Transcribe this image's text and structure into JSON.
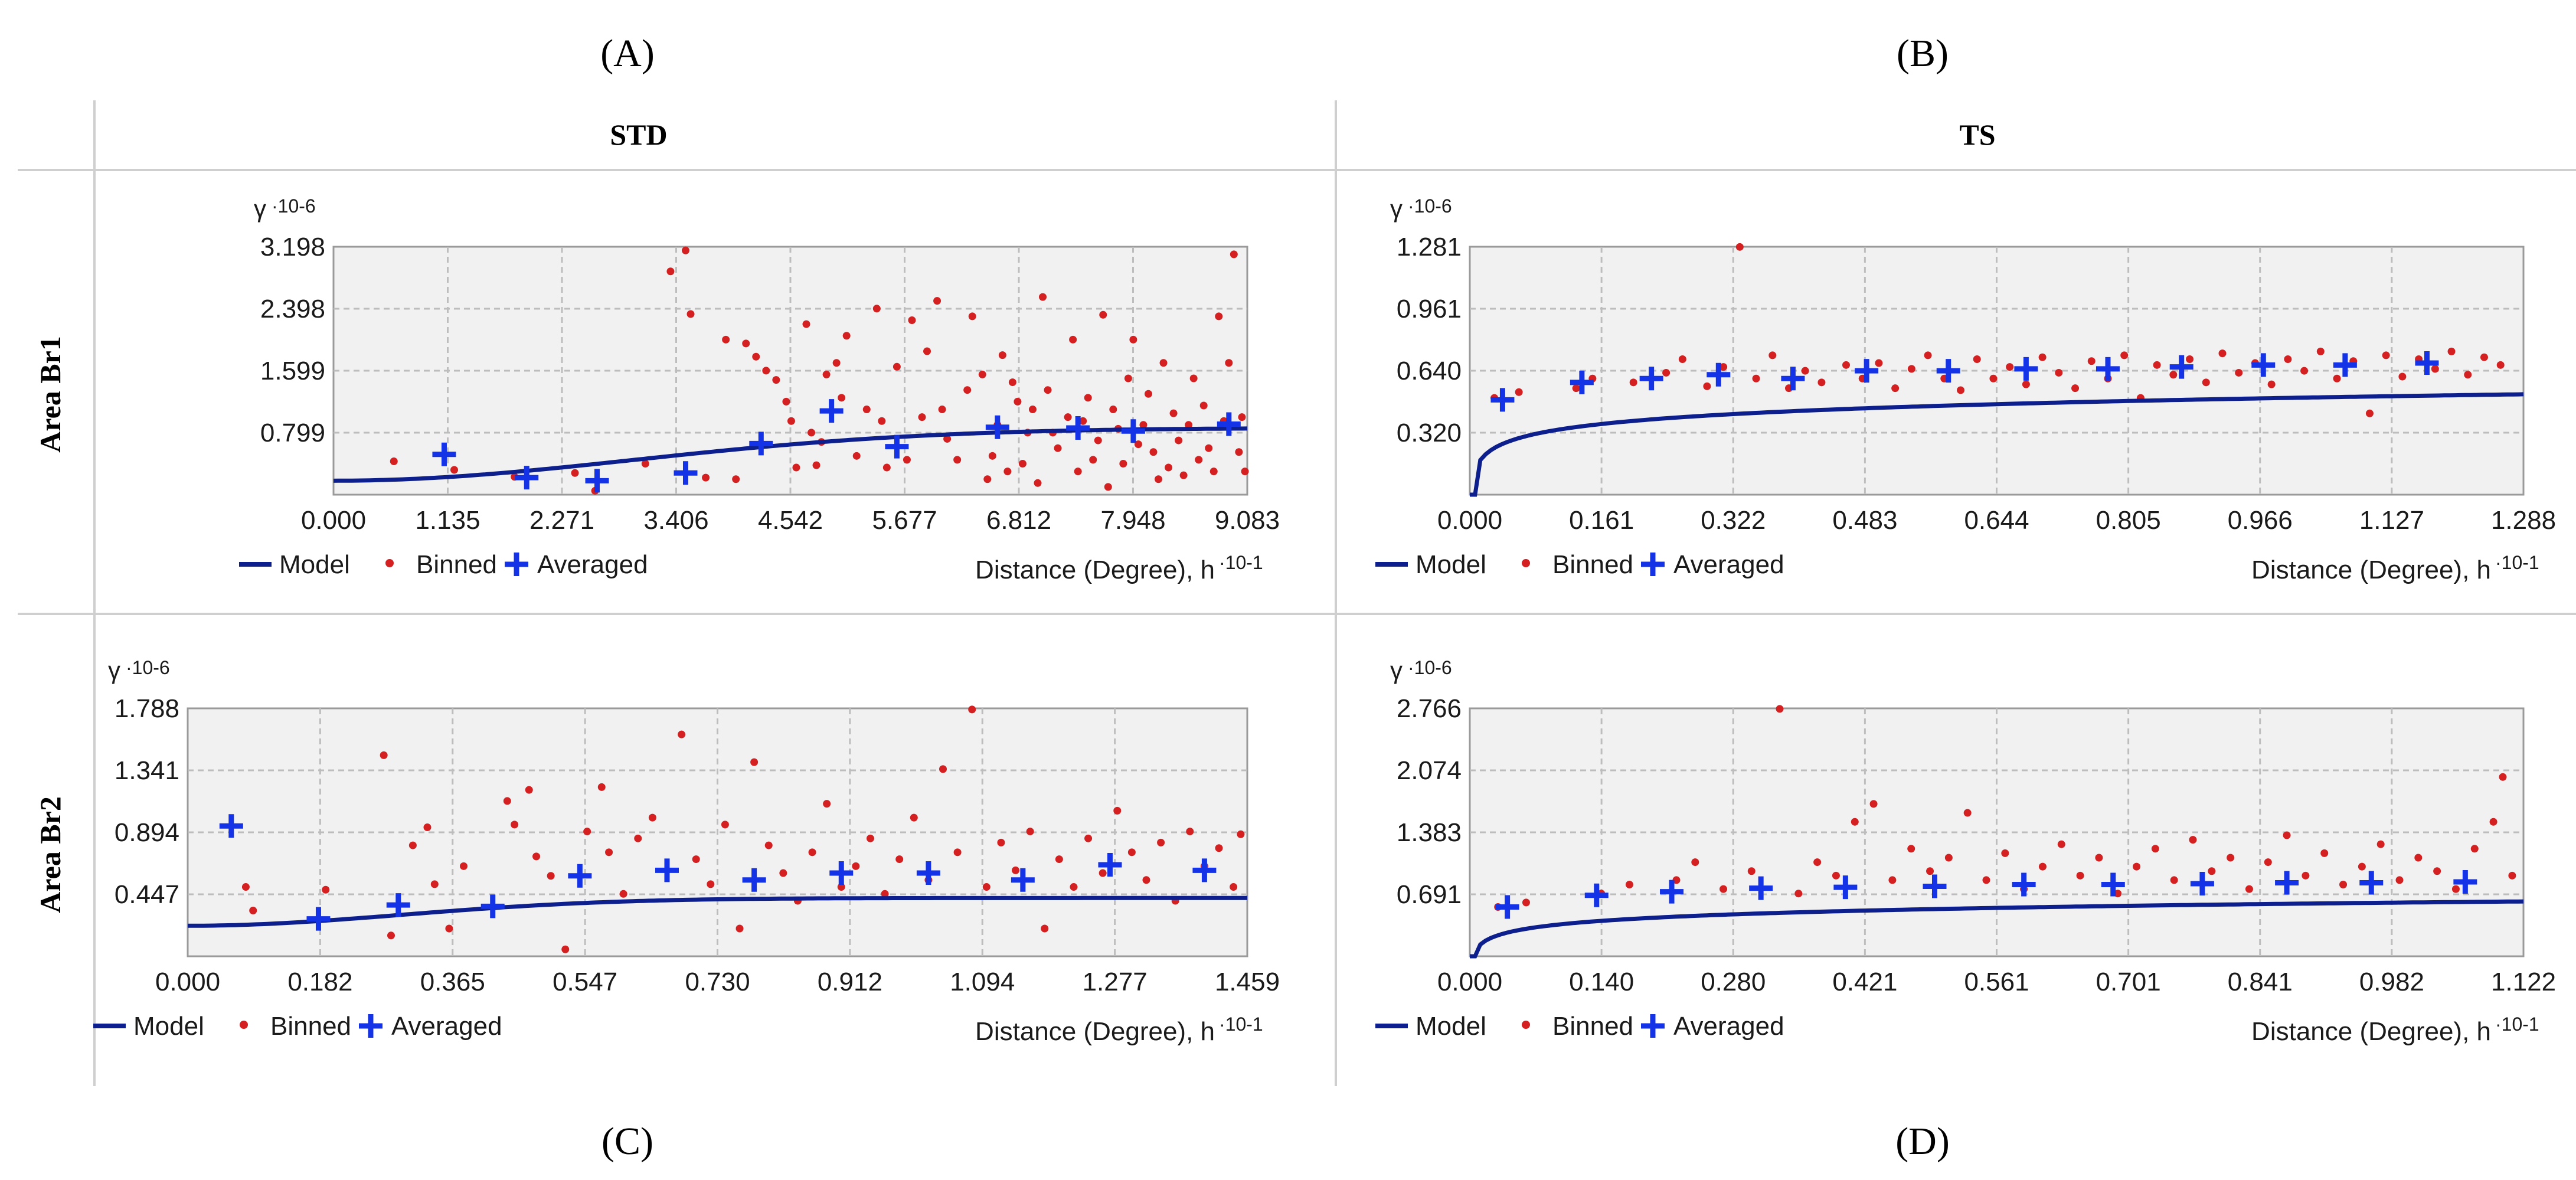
{
  "column_headers": [
    "STD",
    "TS"
  ],
  "row_headers": [
    "Area Br1",
    "Area Br2"
  ],
  "panel_letters": [
    "(A)",
    "(B)",
    "(C)",
    "(D)"
  ],
  "legend": {
    "model": "Model",
    "binned": "Binned",
    "averaged": "Averaged"
  },
  "colors": {
    "model": "#0d1f8c",
    "binned": "#d42020",
    "averaged": "#1433e6"
  },
  "chart_data": [
    {
      "id": "A",
      "type": "scatter",
      "title": "STD — Area Br1",
      "ylabel": "γ",
      "ylabel_exp": "·10-6",
      "xlabel": "Distance (Degree), h",
      "xlabel_exp": "·10-1",
      "xlim": [
        0,
        9.083
      ],
      "ylim": [
        0,
        3.198
      ],
      "xticks": [
        "0.000",
        "1.135",
        "2.271",
        "3.406",
        "4.542",
        "5.677",
        "6.812",
        "7.948",
        "9.083"
      ],
      "yticks": [
        "0.799",
        "1.599",
        "2.398",
        "3.198"
      ],
      "model": {
        "kind": "gaussian",
        "nugget": 0.18,
        "sill": 0.86,
        "range": 7.3
      },
      "averaged": [
        [
          1.1,
          0.52
        ],
        [
          1.92,
          0.22
        ],
        [
          2.62,
          0.18
        ],
        [
          3.5,
          0.28
        ],
        [
          4.25,
          0.66
        ],
        [
          4.95,
          1.08
        ],
        [
          5.6,
          0.62
        ],
        [
          6.6,
          0.87
        ],
        [
          7.4,
          0.86
        ],
        [
          7.95,
          0.82
        ],
        [
          8.9,
          0.91
        ]
      ],
      "binned": [
        [
          0.6,
          0.43
        ],
        [
          1.2,
          0.32
        ],
        [
          1.8,
          0.23
        ],
        [
          2.4,
          0.28
        ],
        [
          2.6,
          0.05
        ],
        [
          3.1,
          0.4
        ],
        [
          3.35,
          2.88
        ],
        [
          3.5,
          3.15
        ],
        [
          3.55,
          2.33
        ],
        [
          3.7,
          0.22
        ],
        [
          3.9,
          2.0
        ],
        [
          4.0,
          0.2
        ],
        [
          4.1,
          1.95
        ],
        [
          4.2,
          1.78
        ],
        [
          4.3,
          1.6
        ],
        [
          4.4,
          1.48
        ],
        [
          4.5,
          1.2
        ],
        [
          4.55,
          0.95
        ],
        [
          4.6,
          0.35
        ],
        [
          4.7,
          2.2
        ],
        [
          4.75,
          0.8
        ],
        [
          4.8,
          0.38
        ],
        [
          4.85,
          0.68
        ],
        [
          4.9,
          1.55
        ],
        [
          5.0,
          1.7
        ],
        [
          5.05,
          1.25
        ],
        [
          5.1,
          2.05
        ],
        [
          5.2,
          0.5
        ],
        [
          5.3,
          1.1
        ],
        [
          5.4,
          2.4
        ],
        [
          5.45,
          0.95
        ],
        [
          5.5,
          0.35
        ],
        [
          5.6,
          1.65
        ],
        [
          5.7,
          0.45
        ],
        [
          5.75,
          2.25
        ],
        [
          5.85,
          1.0
        ],
        [
          5.9,
          1.85
        ],
        [
          6.0,
          2.5
        ],
        [
          6.05,
          1.1
        ],
        [
          6.1,
          0.72
        ],
        [
          6.2,
          0.45
        ],
        [
          6.3,
          1.35
        ],
        [
          6.35,
          2.3
        ],
        [
          6.45,
          1.55
        ],
        [
          6.5,
          0.2
        ],
        [
          6.55,
          0.5
        ],
        [
          6.6,
          0.9
        ],
        [
          6.65,
          1.8
        ],
        [
          6.7,
          0.3
        ],
        [
          6.75,
          1.45
        ],
        [
          6.8,
          1.2
        ],
        [
          6.85,
          0.4
        ],
        [
          6.9,
          0.8
        ],
        [
          6.95,
          1.1
        ],
        [
          7.0,
          0.15
        ],
        [
          7.05,
          2.55
        ],
        [
          7.1,
          1.35
        ],
        [
          7.15,
          0.8
        ],
        [
          7.2,
          0.6
        ],
        [
          7.3,
          1.0
        ],
        [
          7.35,
          2.0
        ],
        [
          7.4,
          0.3
        ],
        [
          7.45,
          0.95
        ],
        [
          7.5,
          1.25
        ],
        [
          7.55,
          0.45
        ],
        [
          7.6,
          0.7
        ],
        [
          7.65,
          2.32
        ],
        [
          7.7,
          0.1
        ],
        [
          7.75,
          1.1
        ],
        [
          7.8,
          0.85
        ],
        [
          7.85,
          0.4
        ],
        [
          7.9,
          1.5
        ],
        [
          7.95,
          2.0
        ],
        [
          8.0,
          0.65
        ],
        [
          8.05,
          0.9
        ],
        [
          8.1,
          1.3
        ],
        [
          8.15,
          0.55
        ],
        [
          8.2,
          0.2
        ],
        [
          8.25,
          1.7
        ],
        [
          8.3,
          0.35
        ],
        [
          8.35,
          1.05
        ],
        [
          8.4,
          0.7
        ],
        [
          8.45,
          0.25
        ],
        [
          8.5,
          0.9
        ],
        [
          8.55,
          1.5
        ],
        [
          8.6,
          0.45
        ],
        [
          8.65,
          1.15
        ],
        [
          8.7,
          0.6
        ],
        [
          8.75,
          0.3
        ],
        [
          8.8,
          2.3
        ],
        [
          8.85,
          0.95
        ],
        [
          8.9,
          1.7
        ],
        [
          8.95,
          3.1
        ],
        [
          9.0,
          0.55
        ],
        [
          9.03,
          1.0
        ],
        [
          9.06,
          0.3
        ]
      ]
    },
    {
      "id": "B",
      "type": "scatter",
      "title": "TS — Area Br1",
      "ylabel": "γ",
      "ylabel_exp": "·10-6",
      "xlabel": "Distance (Degree), h",
      "xlabel_exp": "·10-1",
      "xlim": [
        0,
        1.288
      ],
      "ylim": [
        0,
        1.281
      ],
      "xticks": [
        "0.000",
        "0.161",
        "0.322",
        "0.483",
        "0.644",
        "0.805",
        "0.966",
        "1.127",
        "1.288"
      ],
      "yticks": [
        "0.320",
        "0.640",
        "0.961",
        "1.281"
      ],
      "model": {
        "kind": "power",
        "a": 0.5,
        "b": 0.17,
        "c": 0.14,
        "x0": 0.01
      },
      "averaged": [
        [
          0.04,
          0.49
        ],
        [
          0.137,
          0.58
        ],
        [
          0.222,
          0.6
        ],
        [
          0.304,
          0.62
        ],
        [
          0.395,
          0.6
        ],
        [
          0.485,
          0.64
        ],
        [
          0.585,
          0.64
        ],
        [
          0.68,
          0.65
        ],
        [
          0.78,
          0.65
        ],
        [
          0.87,
          0.66
        ],
        [
          0.97,
          0.67
        ],
        [
          1.07,
          0.67
        ],
        [
          1.17,
          0.68
        ]
      ],
      "binned": [
        [
          0.03,
          0.5
        ],
        [
          0.06,
          0.53
        ],
        [
          0.13,
          0.55
        ],
        [
          0.15,
          0.6
        ],
        [
          0.2,
          0.58
        ],
        [
          0.24,
          0.63
        ],
        [
          0.26,
          0.7
        ],
        [
          0.29,
          0.56
        ],
        [
          0.31,
          0.66
        ],
        [
          0.33,
          1.28
        ],
        [
          0.35,
          0.6
        ],
        [
          0.37,
          0.72
        ],
        [
          0.39,
          0.55
        ],
        [
          0.41,
          0.64
        ],
        [
          0.43,
          0.58
        ],
        [
          0.46,
          0.67
        ],
        [
          0.48,
          0.6
        ],
        [
          0.5,
          0.68
        ],
        [
          0.52,
          0.55
        ],
        [
          0.54,
          0.65
        ],
        [
          0.56,
          0.72
        ],
        [
          0.58,
          0.6
        ],
        [
          0.6,
          0.54
        ],
        [
          0.62,
          0.7
        ],
        [
          0.64,
          0.6
        ],
        [
          0.66,
          0.66
        ],
        [
          0.68,
          0.57
        ],
        [
          0.7,
          0.71
        ],
        [
          0.72,
          0.63
        ],
        [
          0.74,
          0.55
        ],
        [
          0.76,
          0.69
        ],
        [
          0.78,
          0.6
        ],
        [
          0.8,
          0.72
        ],
        [
          0.82,
          0.5
        ],
        [
          0.84,
          0.67
        ],
        [
          0.86,
          0.62
        ],
        [
          0.88,
          0.7
        ],
        [
          0.9,
          0.58
        ],
        [
          0.92,
          0.73
        ],
        [
          0.94,
          0.63
        ],
        [
          0.96,
          0.68
        ],
        [
          0.98,
          0.57
        ],
        [
          1.0,
          0.7
        ],
        [
          1.02,
          0.64
        ],
        [
          1.04,
          0.74
        ],
        [
          1.06,
          0.6
        ],
        [
          1.08,
          0.69
        ],
        [
          1.1,
          0.42
        ],
        [
          1.12,
          0.72
        ],
        [
          1.14,
          0.61
        ],
        [
          1.16,
          0.7
        ],
        [
          1.18,
          0.65
        ],
        [
          1.2,
          0.74
        ],
        [
          1.22,
          0.62
        ],
        [
          1.24,
          0.71
        ],
        [
          1.26,
          0.67
        ]
      ]
    },
    {
      "id": "C",
      "type": "scatter",
      "title": "STD — Area Br2",
      "ylabel": "γ",
      "ylabel_exp": "·10-6",
      "xlabel": "Distance (Degree), h",
      "xlabel_exp": "·10-1",
      "xlim": [
        0,
        1.459
      ],
      "ylim": [
        0,
        1.788
      ],
      "xticks": [
        "0.000",
        "0.182",
        "0.365",
        "0.547",
        "0.730",
        "0.912",
        "1.094",
        "1.277",
        "1.459"
      ],
      "yticks": [
        "0.447",
        "0.894",
        "1.341",
        "1.788"
      ],
      "model": {
        "kind": "gaussian",
        "nugget": 0.22,
        "sill": 0.42,
        "range": 0.72
      },
      "averaged": [
        [
          0.06,
          0.94
        ],
        [
          0.18,
          0.27
        ],
        [
          0.29,
          0.37
        ],
        [
          0.42,
          0.36
        ],
        [
          0.54,
          0.58
        ],
        [
          0.66,
          0.62
        ],
        [
          0.78,
          0.55
        ],
        [
          0.9,
          0.6
        ],
        [
          1.02,
          0.6
        ],
        [
          1.15,
          0.55
        ],
        [
          1.27,
          0.66
        ],
        [
          1.4,
          0.62
        ]
      ],
      "binned": [
        [
          0.08,
          0.5
        ],
        [
          0.09,
          0.33
        ],
        [
          0.19,
          0.48
        ],
        [
          0.27,
          1.45
        ],
        [
          0.28,
          0.15
        ],
        [
          0.31,
          0.8
        ],
        [
          0.33,
          0.93
        ],
        [
          0.34,
          0.52
        ],
        [
          0.36,
          0.2
        ],
        [
          0.38,
          0.65
        ],
        [
          0.44,
          1.12
        ],
        [
          0.45,
          0.95
        ],
        [
          0.47,
          1.2
        ],
        [
          0.48,
          0.72
        ],
        [
          0.5,
          0.58
        ],
        [
          0.52,
          0.05
        ],
        [
          0.55,
          0.9
        ],
        [
          0.57,
          1.22
        ],
        [
          0.58,
          0.75
        ],
        [
          0.6,
          0.45
        ],
        [
          0.62,
          0.85
        ],
        [
          0.64,
          1.0
        ],
        [
          0.68,
          1.6
        ],
        [
          0.7,
          0.7
        ],
        [
          0.72,
          0.52
        ],
        [
          0.74,
          0.95
        ],
        [
          0.76,
          0.2
        ],
        [
          0.78,
          1.4
        ],
        [
          0.8,
          0.8
        ],
        [
          0.82,
          0.6
        ],
        [
          0.84,
          0.4
        ],
        [
          0.86,
          0.75
        ],
        [
          0.88,
          1.1
        ],
        [
          0.9,
          0.5
        ],
        [
          0.92,
          0.65
        ],
        [
          0.94,
          0.85
        ],
        [
          0.96,
          0.45
        ],
        [
          0.98,
          0.7
        ],
        [
          1.0,
          1.0
        ],
        [
          1.02,
          0.55
        ],
        [
          1.04,
          1.35
        ],
        [
          1.06,
          0.75
        ],
        [
          1.08,
          1.78
        ],
        [
          1.1,
          0.5
        ],
        [
          1.12,
          0.82
        ],
        [
          1.14,
          0.62
        ],
        [
          1.16,
          0.9
        ],
        [
          1.18,
          0.2
        ],
        [
          1.2,
          0.7
        ],
        [
          1.22,
          0.5
        ],
        [
          1.24,
          0.85
        ],
        [
          1.26,
          0.6
        ],
        [
          1.28,
          1.05
        ],
        [
          1.3,
          0.75
        ],
        [
          1.32,
          0.55
        ],
        [
          1.34,
          0.82
        ],
        [
          1.36,
          0.4
        ],
        [
          1.38,
          0.9
        ],
        [
          1.4,
          0.65
        ],
        [
          1.42,
          0.78
        ],
        [
          1.44,
          0.5
        ],
        [
          1.45,
          0.88
        ]
      ]
    },
    {
      "id": "D",
      "type": "scatter",
      "title": "TS — Area Br2",
      "ylabel": "γ",
      "ylabel_exp": "·10-6",
      "xlabel": "Distance (Degree), h",
      "xlabel_exp": "·10-1",
      "xlim": [
        0,
        1.122
      ],
      "ylim": [
        0,
        2.766
      ],
      "xticks": [
        "0.000",
        "0.140",
        "0.280",
        "0.421",
        "0.561",
        "0.701",
        "0.841",
        "0.982",
        "1.122"
      ],
      "yticks": [
        "0.691",
        "1.383",
        "2.074",
        "2.766"
      ],
      "model": {
        "kind": "power",
        "a": 0.6,
        "b": 0.24,
        "c": 0.15,
        "x0": 0.008
      },
      "averaged": [
        [
          0.04,
          0.55
        ],
        [
          0.135,
          0.68
        ],
        [
          0.215,
          0.72
        ],
        [
          0.31,
          0.76
        ],
        [
          0.4,
          0.77
        ],
        [
          0.495,
          0.78
        ],
        [
          0.59,
          0.8
        ],
        [
          0.685,
          0.8
        ],
        [
          0.78,
          0.81
        ],
        [
          0.87,
          0.82
        ],
        [
          0.96,
          0.82
        ],
        [
          1.06,
          0.83
        ]
      ],
      "binned": [
        [
          0.03,
          0.55
        ],
        [
          0.06,
          0.6
        ],
        [
          0.14,
          0.7
        ],
        [
          0.17,
          0.8
        ],
        [
          0.22,
          0.85
        ],
        [
          0.24,
          1.05
        ],
        [
          0.27,
          0.75
        ],
        [
          0.3,
          0.95
        ],
        [
          0.33,
          2.76
        ],
        [
          0.35,
          0.7
        ],
        [
          0.37,
          1.05
        ],
        [
          0.39,
          0.9
        ],
        [
          0.41,
          1.5
        ],
        [
          0.43,
          1.7
        ],
        [
          0.45,
          0.85
        ],
        [
          0.47,
          1.2
        ],
        [
          0.49,
          0.95
        ],
        [
          0.51,
          1.1
        ],
        [
          0.53,
          1.6
        ],
        [
          0.55,
          0.85
        ],
        [
          0.57,
          1.15
        ],
        [
          0.59,
          0.75
        ],
        [
          0.61,
          1.0
        ],
        [
          0.63,
          1.25
        ],
        [
          0.65,
          0.9
        ],
        [
          0.67,
          1.1
        ],
        [
          0.69,
          0.7
        ],
        [
          0.71,
          1.0
        ],
        [
          0.73,
          1.2
        ],
        [
          0.75,
          0.85
        ],
        [
          0.77,
          1.3
        ],
        [
          0.79,
          0.95
        ],
        [
          0.81,
          1.1
        ],
        [
          0.83,
          0.75
        ],
        [
          0.85,
          1.05
        ],
        [
          0.87,
          1.35
        ],
        [
          0.89,
          0.9
        ],
        [
          0.91,
          1.15
        ],
        [
          0.93,
          0.8
        ],
        [
          0.95,
          1.0
        ],
        [
          0.97,
          1.25
        ],
        [
          0.99,
          0.85
        ],
        [
          1.01,
          1.1
        ],
        [
          1.03,
          0.95
        ],
        [
          1.05,
          0.75
        ],
        [
          1.07,
          1.2
        ],
        [
          1.09,
          1.5
        ],
        [
          1.1,
          2.0
        ],
        [
          1.11,
          0.9
        ]
      ]
    }
  ]
}
